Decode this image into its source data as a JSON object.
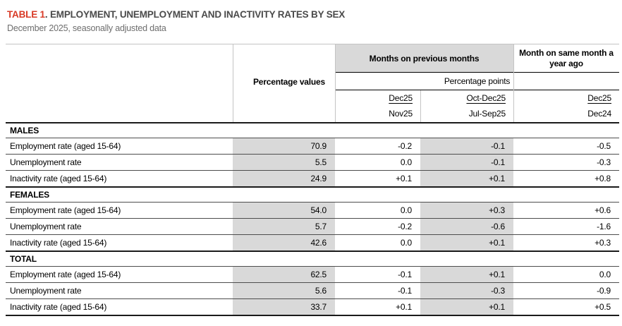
{
  "title": {
    "label": "TABLE 1",
    "separator": ". ",
    "text": "EMPLOYMENT, UNEMPLOYMENT AND INACTIVITY RATES BY SEX",
    "subtitle": "December 2025, seasonally adjusted data"
  },
  "table": {
    "header": {
      "percentage_values": "Percentage values",
      "group_previous": "Months on previous months",
      "group_year": "Month on same month a year ago",
      "percentage_points": "Percentage points",
      "periods": [
        {
          "top": "Dec25",
          "bottom": "Nov25"
        },
        {
          "top": "Oct-Dec25",
          "bottom": "Jul-Sep25"
        },
        {
          "top": "Dec25",
          "bottom": "Dec24"
        }
      ]
    },
    "sections": [
      {
        "name": "MALES",
        "rows": [
          {
            "label": "Employment rate (aged 15-64)",
            "values": [
              "70.9",
              "-0.2",
              "-0.1",
              "-0.5"
            ]
          },
          {
            "label": "Unemployment rate",
            "values": [
              "5.5",
              "0.0",
              "-0.1",
              "-0.3"
            ]
          },
          {
            "label": "Inactivity rate (aged 15-64)",
            "values": [
              "24.9",
              "+0.1",
              "+0.1",
              "+0.8"
            ]
          }
        ]
      },
      {
        "name": "FEMALES",
        "rows": [
          {
            "label": "Employment rate (aged 15-64)",
            "values": [
              "54.0",
              "0.0",
              "+0.3",
              "+0.6"
            ]
          },
          {
            "label": "Unemployment rate",
            "values": [
              "5.7",
              "-0.2",
              "-0.6",
              "-1.6"
            ]
          },
          {
            "label": "Inactivity rate (aged 15-64)",
            "values": [
              "42.6",
              "0.0",
              "+0.1",
              "+0.3"
            ]
          }
        ]
      },
      {
        "name": "TOTAL",
        "rows": [
          {
            "label": "Employment rate (aged 15-64)",
            "values": [
              "62.5",
              "-0.1",
              "+0.1",
              "0.0"
            ]
          },
          {
            "label": "Unemployment rate",
            "values": [
              "5.6",
              "-0.1",
              "-0.3",
              "-0.9"
            ]
          },
          {
            "label": "Inactivity rate (aged 15-64)",
            "values": [
              "33.7",
              "+0.1",
              "+0.1",
              "+0.5"
            ]
          }
        ]
      }
    ]
  },
  "colors": {
    "accent": "#d93a26",
    "titletext": "#4a4a4a",
    "subtitletext": "#6e6e6e",
    "shade": "#d9d9d9",
    "lightline": "#c4c4c4",
    "rowline": "#4d4d4d",
    "strongline": "#1a1a1a"
  }
}
